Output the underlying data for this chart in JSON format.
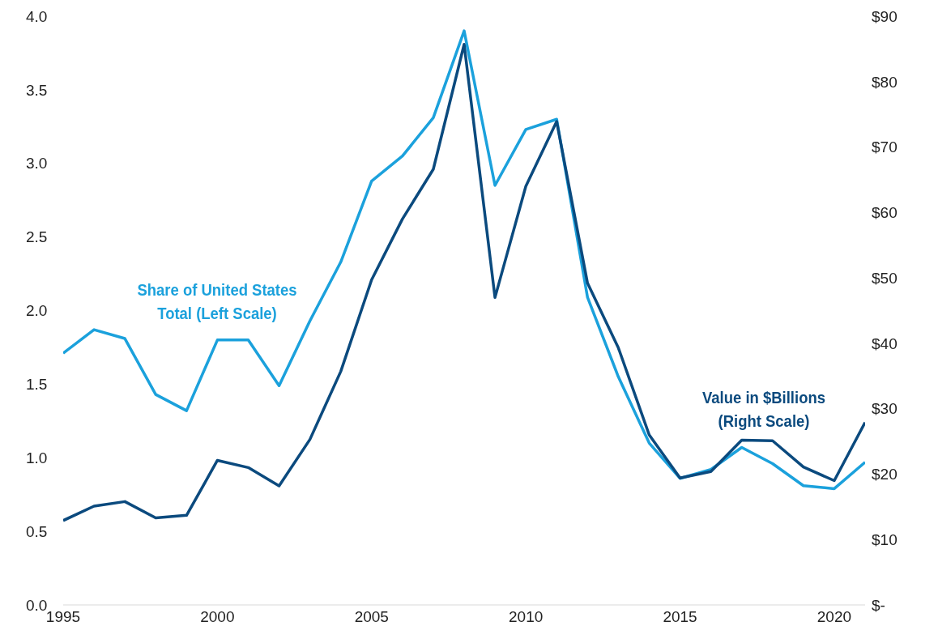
{
  "chart_data": {
    "type": "line",
    "x": [
      1995,
      1996,
      1997,
      1998,
      1999,
      2000,
      2001,
      2002,
      2003,
      2004,
      2005,
      2006,
      2007,
      2008,
      2009,
      2010,
      2011,
      2012,
      2013,
      2014,
      2015,
      2016,
      2017,
      2018,
      2019,
      2020,
      2021
    ],
    "series": [
      {
        "name": "Share of United States Total (Left Scale)",
        "color": "#1ba1dc",
        "values": [
          1.71,
          1.87,
          1.81,
          1.43,
          1.32,
          1.8,
          1.8,
          1.49,
          1.93,
          2.33,
          2.88,
          3.05,
          3.31,
          3.9,
          2.85,
          3.23,
          3.3,
          2.09,
          1.55,
          1.1,
          0.86,
          0.92,
          1.07,
          0.96,
          0.81,
          0.79,
          0.97
        ]
      },
      {
        "name": "Value in $Billions (Right Scale)",
        "color": "#0b4a7e",
        "axis": "y2",
        "values": [
          12.9,
          15.1,
          15.8,
          13.3,
          13.7,
          22.1,
          21.0,
          18.2,
          25.3,
          35.7,
          49.7,
          59.0,
          66.6,
          85.7,
          47.0,
          64.0,
          73.9,
          49.2,
          39.3,
          26.0,
          19.4,
          20.4,
          25.2,
          25.1,
          21.1,
          19.0,
          27.9
        ]
      }
    ],
    "xlim": [
      1995,
      2021
    ],
    "xticks": [
      1995,
      2000,
      2005,
      2010,
      2015,
      2020
    ],
    "ylim": [
      0,
      4
    ],
    "yticks": [
      {
        "value": 0,
        "label": "0.0"
      },
      0.5,
      {
        "value": 1,
        "label": "1.0"
      },
      1.5,
      {
        "value": 2,
        "label": "2.0"
      },
      2.5,
      {
        "value": 3,
        "label": "3.0"
      },
      3.5,
      {
        "value": 4,
        "label": "4.0"
      }
    ],
    "y2lim": [
      0,
      90
    ],
    "y2ticks": [
      {
        "value": 0,
        "label": "$-"
      },
      {
        "value": 10,
        "label": "$10"
      },
      {
        "value": 20,
        "label": "$20"
      },
      {
        "value": 30,
        "label": "$30"
      },
      {
        "value": 40,
        "label": "$40"
      },
      {
        "value": 50,
        "label": "$50"
      },
      {
        "value": 60,
        "label": "$60"
      },
      {
        "value": 70,
        "label": "$70"
      },
      {
        "value": 80,
        "label": "$80"
      },
      {
        "value": 90,
        "label": "$90"
      }
    ],
    "grid": false,
    "legend": false,
    "marker": "none",
    "line_style": "solid"
  }
}
